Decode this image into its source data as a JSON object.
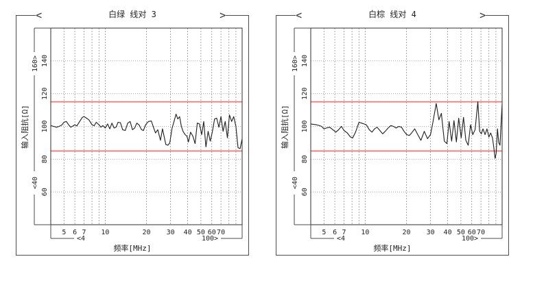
{
  "colors": {
    "background": "#ffffff",
    "frame": "#2e2e2e",
    "bracket": "#4a4a4a",
    "grid": "#909090",
    "text": "#222222",
    "limit": "#ef7474",
    "curve": "#1c1c1c"
  },
  "chart_data": [
    {
      "type": "line",
      "title": "白绿 线对 3",
      "title_arrows": {
        "left": "<",
        "right": ">"
      },
      "xlabel": "频率[MHz]",
      "ylabel": "输入阻抗[Ω]",
      "xscale": "log",
      "xlim": [
        4,
        100
      ],
      "ylim": [
        40,
        160
      ],
      "x_ticks_labeled": [
        5,
        6,
        7,
        10,
        20,
        30,
        40,
        50,
        60,
        70
      ],
      "x_gridlines": [
        5,
        6,
        7,
        8,
        9,
        10,
        20,
        30,
        40,
        50,
        60,
        70,
        80,
        90
      ],
      "y_ticks": [
        140,
        120,
        100,
        80,
        60
      ],
      "range_labels": {
        "x_min": "<4",
        "x_max": "100>",
        "y_min": "<40",
        "y_max": "160>"
      },
      "limit_lines": {
        "upper": 115,
        "lower": 85
      },
      "series": [
        {
          "name": "input-impedance-pair3",
          "points": [
            [
              4,
              100.5
            ],
            [
              4.2,
              100
            ],
            [
              4.4,
              99.5
            ],
            [
              4.6,
              100
            ],
            [
              4.8,
              100.8
            ],
            [
              5,
              102.5
            ],
            [
              5.2,
              103
            ],
            [
              5.4,
              101
            ],
            [
              5.6,
              99.5
            ],
            [
              5.8,
              100.2
            ],
            [
              6,
              101
            ],
            [
              6.2,
              100.3
            ],
            [
              6.5,
              103
            ],
            [
              6.8,
              105.5
            ],
            [
              7,
              106
            ],
            [
              7.3,
              105
            ],
            [
              7.6,
              104
            ],
            [
              8,
              101
            ],
            [
              8.3,
              100.4
            ],
            [
              8.6,
              102.5
            ],
            [
              9,
              101
            ],
            [
              9.3,
              99.5
            ],
            [
              9.6,
              100.5
            ],
            [
              10,
              99
            ],
            [
              10.4,
              101.5
            ],
            [
              10.8,
              98.5
            ],
            [
              11.2,
              102
            ],
            [
              11.6,
              99
            ],
            [
              12,
              99.5
            ],
            [
              12.4,
              102.5
            ],
            [
              12.9,
              102.3
            ],
            [
              13.4,
              98
            ],
            [
              14,
              97.5
            ],
            [
              14.6,
              102
            ],
            [
              15.2,
              103
            ],
            [
              15.8,
              98
            ],
            [
              16.4,
              99
            ],
            [
              17,
              102
            ],
            [
              17.7,
              100.8
            ],
            [
              18.4,
              98
            ],
            [
              19,
              97.5
            ],
            [
              19.7,
              101
            ],
            [
              20.7,
              103
            ],
            [
              21.7,
              103.3
            ],
            [
              22.6,
              99
            ],
            [
              23.3,
              96
            ],
            [
              24.2,
              98
            ],
            [
              25.3,
              91.5
            ],
            [
              26.2,
              98.5
            ],
            [
              27.7,
              89
            ],
            [
              28.7,
              88.5
            ],
            [
              29.6,
              90
            ],
            [
              30.8,
              99
            ],
            [
              31.8,
              103
            ],
            [
              32.9,
              107.5
            ],
            [
              33.9,
              104.5
            ],
            [
              34.9,
              106
            ],
            [
              36,
              100
            ],
            [
              37,
              97
            ],
            [
              38.3,
              95
            ],
            [
              39.5,
              94
            ],
            [
              40.5,
              90.5
            ],
            [
              42,
              96.5
            ],
            [
              43.7,
              94
            ],
            [
              45.3,
              89.5
            ],
            [
              47,
              102
            ],
            [
              48.8,
              101.5
            ],
            [
              50.6,
              95
            ],
            [
              52.4,
              103
            ],
            [
              54.4,
              87.5
            ],
            [
              56.4,
              97
            ],
            [
              58.5,
              91
            ],
            [
              60.7,
              97
            ],
            [
              62.9,
              104.5
            ],
            [
              65.2,
              105
            ],
            [
              67.6,
              99.5
            ],
            [
              70,
              106
            ],
            [
              72.6,
              97
            ],
            [
              75.2,
              103
            ],
            [
              78,
              93
            ],
            [
              80.8,
              107
            ],
            [
              83.8,
              103
            ],
            [
              86.8,
              106
            ],
            [
              90,
              100
            ],
            [
              93.3,
              87
            ],
            [
              96.7,
              86.5
            ],
            [
              100,
              92.5
            ]
          ]
        }
      ]
    },
    {
      "type": "line",
      "title": "白棕 线对 4",
      "title_arrows": {
        "left": "<",
        "right": ">"
      },
      "xlabel": "频率[MHz]",
      "ylabel": "输入阻抗[Ω]",
      "xscale": "log",
      "xlim": [
        4,
        100
      ],
      "ylim": [
        40,
        160
      ],
      "x_ticks_labeled": [
        5,
        6,
        7,
        10,
        20,
        30,
        40,
        50,
        60,
        70
      ],
      "x_gridlines": [
        5,
        6,
        7,
        8,
        9,
        10,
        20,
        30,
        40,
        50,
        60,
        70,
        80,
        90
      ],
      "y_ticks": [
        140,
        120,
        100,
        80,
        60
      ],
      "range_labels": {
        "x_min": "<4",
        "x_max": "100>",
        "y_min": "<40",
        "y_max": "160>"
      },
      "limit_lines": {
        "upper": 115,
        "lower": 85
      },
      "series": [
        {
          "name": "input-impedance-pair4",
          "points": [
            [
              4,
              101.5
            ],
            [
              4.2,
              101.2
            ],
            [
              4.4,
              101
            ],
            [
              4.6,
              100.6
            ],
            [
              4.8,
              100
            ],
            [
              5,
              98.5
            ],
            [
              5.2,
              99
            ],
            [
              5.5,
              99.5
            ],
            [
              5.8,
              98
            ],
            [
              6.1,
              96.5
            ],
            [
              6.4,
              98
            ],
            [
              6.7,
              100
            ],
            [
              7,
              97.5
            ],
            [
              7.4,
              96
            ],
            [
              7.8,
              93.5
            ],
            [
              8.1,
              93
            ],
            [
              8.5,
              96.5
            ],
            [
              9,
              102.5
            ],
            [
              9.4,
              102
            ],
            [
              9.8,
              101.5
            ],
            [
              10.2,
              101
            ],
            [
              10.7,
              98
            ],
            [
              11.2,
              96.5
            ],
            [
              11.7,
              98.5
            ],
            [
              12.2,
              99.5
            ],
            [
              12.8,
              97.5
            ],
            [
              13.4,
              95.5
            ],
            [
              14,
              97
            ],
            [
              14.7,
              99
            ],
            [
              15.4,
              100.5
            ],
            [
              16.1,
              100
            ],
            [
              16.8,
              99
            ],
            [
              17.6,
              100
            ],
            [
              18.4,
              99.5
            ],
            [
              19.2,
              97
            ],
            [
              20.1,
              95
            ],
            [
              21,
              94.5
            ],
            [
              21.8,
              96
            ],
            [
              23,
              98.5
            ],
            [
              24.2,
              95
            ],
            [
              25.5,
              91.5
            ],
            [
              27,
              97
            ],
            [
              28.5,
              92.5
            ],
            [
              30,
              95
            ],
            [
              31.3,
              103
            ],
            [
              33,
              114
            ],
            [
              34.5,
              104
            ],
            [
              36,
              108
            ],
            [
              37.8,
              91
            ],
            [
              39.5,
              89.5
            ],
            [
              41,
              103
            ],
            [
              42.8,
              91
            ],
            [
              44.5,
              103.5
            ],
            [
              46.3,
              90.5
            ],
            [
              48.2,
              105
            ],
            [
              50.2,
              93
            ],
            [
              52.2,
              105.5
            ],
            [
              54.3,
              91.5
            ],
            [
              56.5,
              88.5
            ],
            [
              58.8,
              101
            ],
            [
              61,
              95
            ],
            [
              63.5,
              98
            ],
            [
              66.5,
              115
            ],
            [
              68.5,
              97
            ],
            [
              70.5,
              95.5
            ],
            [
              72.5,
              98.5
            ],
            [
              75,
              95
            ],
            [
              77.5,
              98.5
            ],
            [
              80,
              93.5
            ],
            [
              82.5,
              96
            ],
            [
              85,
              93
            ],
            [
              87,
              87
            ],
            [
              88.8,
              80.5
            ],
            [
              90.5,
              83.5
            ],
            [
              92.5,
              98.5
            ],
            [
              94.5,
              90
            ],
            [
              96.5,
              88.5
            ],
            [
              100,
              114
            ]
          ]
        }
      ]
    }
  ]
}
